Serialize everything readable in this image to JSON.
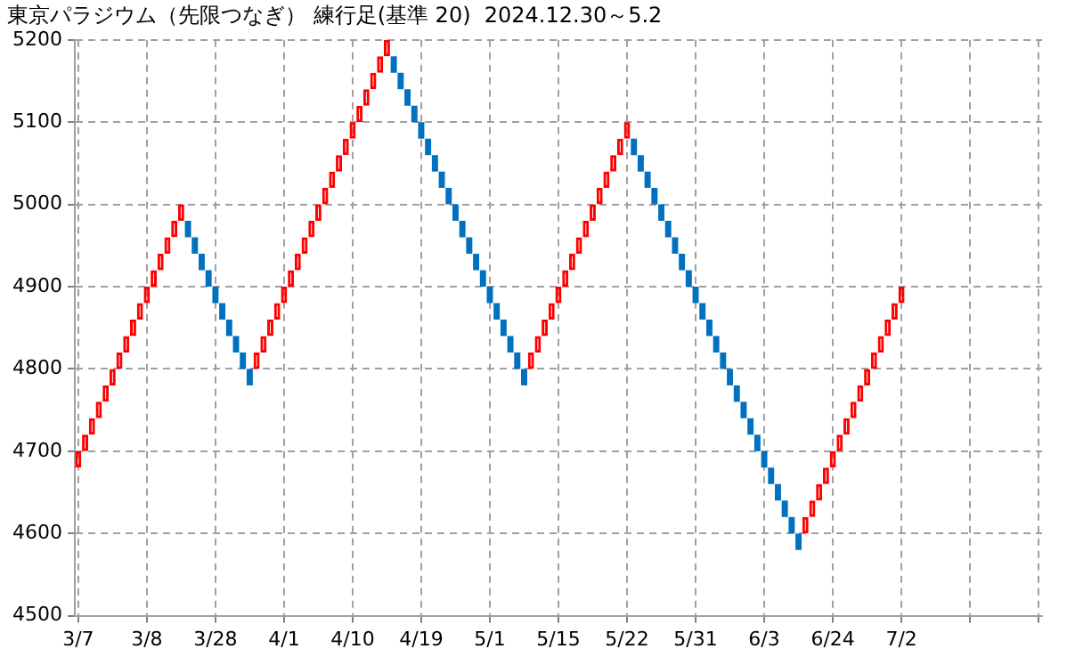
{
  "chart_data": {
    "type": "candlestick",
    "title": "東京パラジウム（先限つなぎ） 練行足(基準 20)  2024.12.30～5.2",
    "categories": [
      "3/7",
      null,
      null,
      null,
      null,
      null,
      null,
      null,
      null,
      null,
      "3/8",
      null,
      null,
      null,
      null,
      null,
      null,
      null,
      null,
      null,
      "3/28",
      null,
      null,
      null,
      null,
      null,
      null,
      null,
      null,
      null,
      "4/1",
      null,
      null,
      null,
      null,
      null,
      null,
      null,
      null,
      null,
      "4/10",
      null,
      null,
      null,
      null,
      null,
      null,
      null,
      null,
      null,
      "4/19",
      null,
      null,
      null,
      null,
      null,
      null,
      null,
      null,
      null,
      "5/1",
      null,
      null,
      null,
      null,
      null,
      null,
      null,
      null,
      null,
      "5/15",
      null,
      null,
      null,
      null,
      null,
      null,
      null,
      null,
      null,
      "5/22",
      null,
      null,
      null,
      null,
      null,
      null,
      null,
      null,
      null,
      "5/31",
      null,
      null,
      null,
      null,
      null,
      null,
      null,
      null,
      null,
      "6/3",
      null,
      null,
      null,
      null,
      null,
      null,
      null,
      null,
      null,
      "6/24",
      null,
      null,
      null,
      null,
      null,
      null,
      null,
      null,
      null,
      "7/2",
      null,
      null,
      null,
      null,
      null,
      null,
      null,
      null,
      null,
      null,
      null,
      null,
      null,
      null,
      null,
      null,
      null,
      null,
      null,
      null
    ],
    "ohlc": [
      [
        4680,
        4700,
        4680,
        4700
      ],
      [
        4700,
        4720,
        4700,
        4720
      ],
      [
        4720,
        4740,
        4720,
        4740
      ],
      [
        4740,
        4760,
        4740,
        4760
      ],
      [
        4760,
        4780,
        4760,
        4780
      ],
      [
        4780,
        4800,
        4780,
        4800
      ],
      [
        4800,
        4820,
        4800,
        4820
      ],
      [
        4820,
        4840,
        4820,
        4840
      ],
      [
        4840,
        4860,
        4840,
        4860
      ],
      [
        4860,
        4880,
        4860,
        4880
      ],
      [
        4880,
        4900,
        4880,
        4900
      ],
      [
        4900,
        4920,
        4900,
        4920
      ],
      [
        4920,
        4940,
        4920,
        4940
      ],
      [
        4940,
        4960,
        4940,
        4960
      ],
      [
        4960,
        4980,
        4960,
        4980
      ],
      [
        4980,
        5000,
        4980,
        5000
      ],
      [
        4980,
        4980,
        4960,
        4960
      ],
      [
        4960,
        4960,
        4940,
        4940
      ],
      [
        4940,
        4940,
        4920,
        4920
      ],
      [
        4920,
        4920,
        4900,
        4900
      ],
      [
        4900,
        4900,
        4880,
        4880
      ],
      [
        4880,
        4880,
        4860,
        4860
      ],
      [
        4860,
        4860,
        4840,
        4840
      ],
      [
        4840,
        4840,
        4820,
        4820
      ],
      [
        4820,
        4820,
        4800,
        4800
      ],
      [
        4800,
        4800,
        4780,
        4780
      ],
      [
        4800,
        4820,
        4800,
        4820
      ],
      [
        4820,
        4840,
        4820,
        4840
      ],
      [
        4840,
        4860,
        4840,
        4860
      ],
      [
        4860,
        4880,
        4860,
        4880
      ],
      [
        4880,
        4900,
        4880,
        4900
      ],
      [
        4900,
        4920,
        4900,
        4920
      ],
      [
        4920,
        4940,
        4920,
        4940
      ],
      [
        4940,
        4960,
        4940,
        4960
      ],
      [
        4960,
        4980,
        4960,
        4980
      ],
      [
        4980,
        5000,
        4980,
        5000
      ],
      [
        5000,
        5020,
        5000,
        5020
      ],
      [
        5020,
        5040,
        5020,
        5040
      ],
      [
        5040,
        5060,
        5040,
        5060
      ],
      [
        5060,
        5080,
        5060,
        5080
      ],
      [
        5080,
        5100,
        5080,
        5100
      ],
      [
        5100,
        5120,
        5100,
        5120
      ],
      [
        5120,
        5140,
        5120,
        5140
      ],
      [
        5140,
        5160,
        5140,
        5160
      ],
      [
        5160,
        5180,
        5160,
        5180
      ],
      [
        5180,
        5200,
        5180,
        5200
      ],
      [
        5180,
        5180,
        5160,
        5160
      ],
      [
        5160,
        5160,
        5140,
        5140
      ],
      [
        5140,
        5140,
        5120,
        5120
      ],
      [
        5120,
        5120,
        5100,
        5100
      ],
      [
        5100,
        5100,
        5080,
        5080
      ],
      [
        5080,
        5080,
        5060,
        5060
      ],
      [
        5060,
        5060,
        5040,
        5040
      ],
      [
        5040,
        5040,
        5020,
        5020
      ],
      [
        5020,
        5020,
        5000,
        5000
      ],
      [
        5000,
        5000,
        4980,
        4980
      ],
      [
        4980,
        4980,
        4960,
        4960
      ],
      [
        4960,
        4960,
        4940,
        4940
      ],
      [
        4940,
        4940,
        4920,
        4920
      ],
      [
        4920,
        4920,
        4900,
        4900
      ],
      [
        4900,
        4900,
        4880,
        4880
      ],
      [
        4880,
        4880,
        4860,
        4860
      ],
      [
        4860,
        4860,
        4840,
        4840
      ],
      [
        4840,
        4840,
        4820,
        4820
      ],
      [
        4820,
        4820,
        4800,
        4800
      ],
      [
        4800,
        4800,
        4780,
        4780
      ],
      [
        4800,
        4820,
        4800,
        4820
      ],
      [
        4820,
        4840,
        4820,
        4840
      ],
      [
        4840,
        4860,
        4840,
        4860
      ],
      [
        4860,
        4880,
        4860,
        4880
      ],
      [
        4880,
        4900,
        4880,
        4900
      ],
      [
        4900,
        4920,
        4900,
        4920
      ],
      [
        4920,
        4940,
        4920,
        4940
      ],
      [
        4940,
        4960,
        4940,
        4960
      ],
      [
        4960,
        4980,
        4960,
        4980
      ],
      [
        4980,
        5000,
        4980,
        5000
      ],
      [
        5000,
        5020,
        5000,
        5020
      ],
      [
        5020,
        5040,
        5020,
        5040
      ],
      [
        5040,
        5060,
        5040,
        5060
      ],
      [
        5060,
        5080,
        5060,
        5080
      ],
      [
        5080,
        5100,
        5080,
        5100
      ],
      [
        5080,
        5080,
        5060,
        5060
      ],
      [
        5060,
        5060,
        5040,
        5040
      ],
      [
        5040,
        5040,
        5020,
        5020
      ],
      [
        5020,
        5020,
        5000,
        5000
      ],
      [
        5000,
        5000,
        4980,
        4980
      ],
      [
        4980,
        4980,
        4960,
        4960
      ],
      [
        4960,
        4960,
        4940,
        4940
      ],
      [
        4940,
        4940,
        4920,
        4920
      ],
      [
        4920,
        4920,
        4900,
        4900
      ],
      [
        4900,
        4900,
        4880,
        4880
      ],
      [
        4880,
        4880,
        4860,
        4860
      ],
      [
        4860,
        4860,
        4840,
        4840
      ],
      [
        4840,
        4840,
        4820,
        4820
      ],
      [
        4820,
        4820,
        4800,
        4800
      ],
      [
        4800,
        4800,
        4780,
        4780
      ],
      [
        4780,
        4780,
        4760,
        4760
      ],
      [
        4760,
        4760,
        4740,
        4740
      ],
      [
        4740,
        4740,
        4720,
        4720
      ],
      [
        4720,
        4720,
        4700,
        4700
      ],
      [
        4700,
        4700,
        4680,
        4680
      ],
      [
        4680,
        4680,
        4660,
        4660
      ],
      [
        4660,
        4660,
        4640,
        4640
      ],
      [
        4640,
        4640,
        4620,
        4620
      ],
      [
        4620,
        4620,
        4600,
        4600
      ],
      [
        4600,
        4600,
        4580,
        4580
      ],
      [
        4600,
        4620,
        4600,
        4620
      ],
      [
        4620,
        4640,
        4620,
        4640
      ],
      [
        4640,
        4660,
        4640,
        4660
      ],
      [
        4660,
        4680,
        4660,
        4680
      ],
      [
        4680,
        4700,
        4680,
        4700
      ],
      [
        4700,
        4720,
        4700,
        4720
      ],
      [
        4720,
        4740,
        4720,
        4740
      ],
      [
        4740,
        4760,
        4740,
        4760
      ],
      [
        4760,
        4780,
        4760,
        4780
      ],
      [
        4780,
        4800,
        4780,
        4800
      ],
      [
        4800,
        4820,
        4800,
        4820
      ],
      [
        4820,
        4840,
        4820,
        4840
      ],
      [
        4840,
        4860,
        4840,
        4860
      ],
      [
        4860,
        4880,
        4860,
        4880
      ],
      [
        4880,
        4900,
        4880,
        4900
      ],
      null,
      null,
      null,
      null,
      null,
      null,
      null,
      null,
      null,
      null,
      null,
      null,
      null,
      null,
      null,
      null,
      null,
      null,
      null,
      null
    ],
    "colors": [
      "#ff0000",
      "#ff0000",
      "#ff0000",
      "#ff0000",
      "#ff0000",
      "#ff0000",
      "#ff0000",
      "#ff0000",
      "#ff0000",
      "#ff0000",
      "#ff0000",
      "#ff0000",
      "#ff0000",
      "#ff0000",
      "#ff0000",
      "#ff0000",
      "#0070c0",
      "#0070c0",
      "#0070c0",
      "#0070c0",
      "#0070c0",
      "#0070c0",
      "#0070c0",
      "#0070c0",
      "#0070c0",
      "#0070c0",
      "#ff0000",
      "#ff0000",
      "#ff0000",
      "#ff0000",
      "#ff0000",
      "#ff0000",
      "#ff0000",
      "#ff0000",
      "#ff0000",
      "#ff0000",
      "#ff0000",
      "#ff0000",
      "#ff0000",
      "#ff0000",
      "#ff0000",
      "#ff0000",
      "#ff0000",
      "#ff0000",
      "#ff0000",
      "#ff0000",
      "#0070c0",
      "#0070c0",
      "#0070c0",
      "#0070c0",
      "#0070c0",
      "#0070c0",
      "#0070c0",
      "#0070c0",
      "#0070c0",
      "#0070c0",
      "#0070c0",
      "#0070c0",
      "#0070c0",
      "#0070c0",
      "#0070c0",
      "#0070c0",
      "#0070c0",
      "#0070c0",
      "#0070c0",
      "#0070c0",
      "#ff0000",
      "#ff0000",
      "#ff0000",
      "#ff0000",
      "#ff0000",
      "#ff0000",
      "#ff0000",
      "#ff0000",
      "#ff0000",
      "#ff0000",
      "#ff0000",
      "#ff0000",
      "#ff0000",
      "#ff0000",
      "#ff0000",
      "#0070c0",
      "#0070c0",
      "#0070c0",
      "#0070c0",
      "#0070c0",
      "#0070c0",
      "#0070c0",
      "#0070c0",
      "#0070c0",
      "#0070c0",
      "#0070c0",
      "#0070c0",
      "#0070c0",
      "#0070c0",
      "#0070c0",
      "#0070c0",
      "#0070c0",
      "#0070c0",
      "#0070c0",
      "#0070c0",
      "#0070c0",
      "#0070c0",
      "#0070c0",
      "#0070c0",
      "#0070c0",
      "#ff0000",
      "#ff0000",
      "#ff0000",
      "#ff0000",
      "#ff0000",
      "#ff0000",
      "#ff0000",
      "#ff0000",
      "#ff0000",
      "#ff0000",
      "#ff0000",
      "#ff0000",
      "#ff0000",
      "#ff0000",
      "#ff0000",
      null,
      null,
      null,
      null,
      null,
      null,
      null,
      null,
      null,
      null,
      null,
      null,
      null,
      null,
      null,
      null,
      null,
      null,
      null,
      null
    ],
    "ylim": [
      4500,
      5200
    ],
    "yticks": [
      4500,
      4600,
      4700,
      4800,
      4900,
      5000,
      5100,
      5200
    ],
    "grid": true,
    "legend": false
  }
}
